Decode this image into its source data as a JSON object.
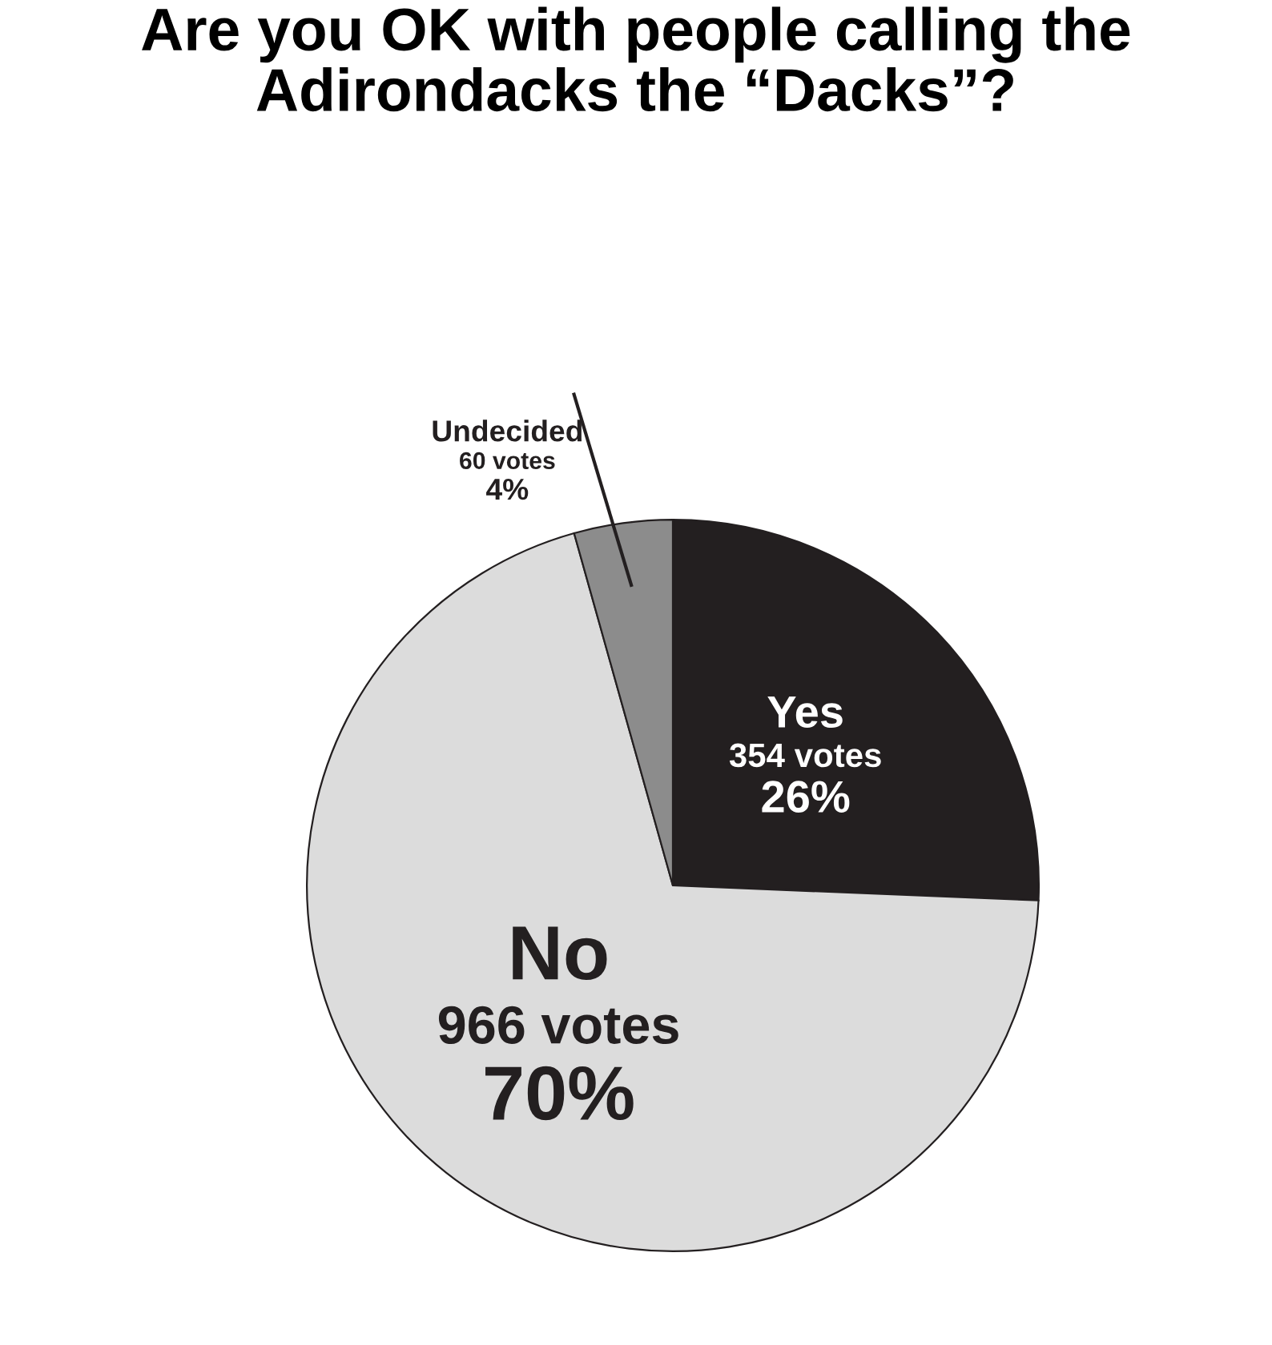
{
  "chart_data": {
    "type": "pie",
    "title": "Are you OK with people calling the\nAdirondacks the “Dacks”?",
    "categories": [
      "Yes",
      "No",
      "Undecided"
    ],
    "values": [
      354,
      966,
      60
    ],
    "value_labels": [
      "354 votes\n26%",
      "966 votes\n70%",
      "60 votes\n4%"
    ],
    "colors": [
      "#231f20",
      "#dcdcdc",
      "#8c8c8c"
    ]
  }
}
